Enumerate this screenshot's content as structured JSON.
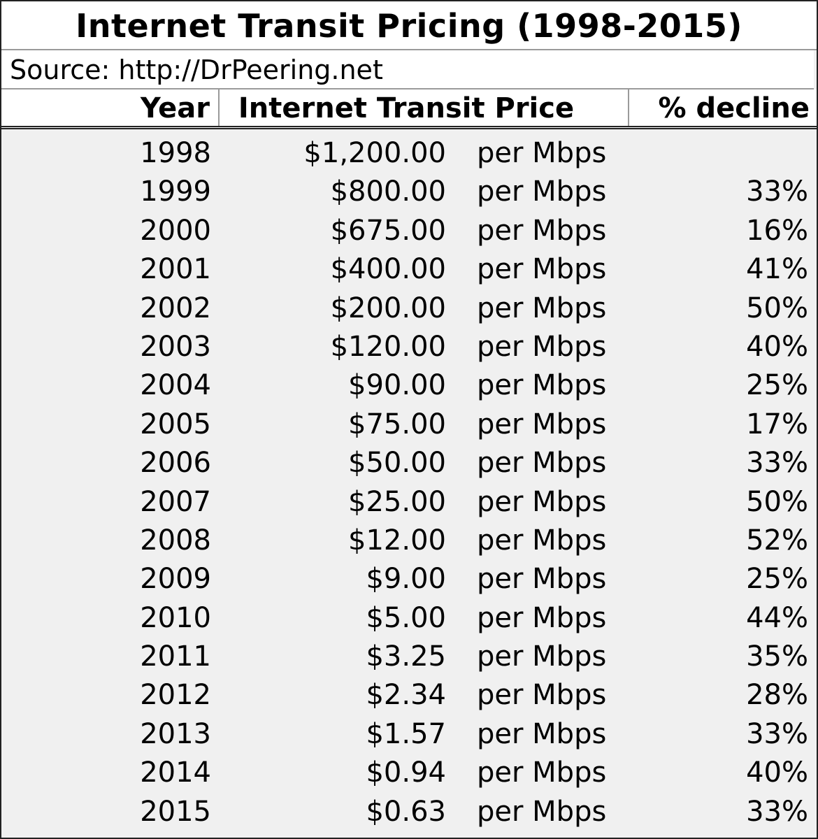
{
  "chart_data": {
    "type": "table",
    "title": "Internet Transit Pricing (1998-2015)",
    "source": "Source: http://DrPeering.net",
    "columns": [
      "Year",
      "Internet Transit Price",
      "% decline"
    ],
    "unit_label": "per Mbps",
    "x": [
      1998,
      1999,
      2000,
      2001,
      2002,
      2003,
      2004,
      2005,
      2006,
      2007,
      2008,
      2009,
      2010,
      2011,
      2012,
      2013,
      2014,
      2015
    ],
    "series": [
      {
        "name": "Internet Transit Price",
        "values": [
          1200.0,
          800.0,
          675.0,
          400.0,
          200.0,
          120.0,
          90.0,
          75.0,
          50.0,
          25.0,
          12.0,
          9.0,
          5.0,
          3.25,
          2.34,
          1.57,
          0.94,
          0.63
        ]
      },
      {
        "name": "% decline",
        "values": [
          null,
          33,
          16,
          41,
          50,
          40,
          25,
          17,
          33,
          50,
          52,
          25,
          44,
          35,
          28,
          33,
          40,
          33
        ]
      }
    ],
    "rows": [
      {
        "year": "1998",
        "price": "$1,200.00",
        "unit": "per Mbps",
        "decline": ""
      },
      {
        "year": "1999",
        "price": "$800.00",
        "unit": "per Mbps",
        "decline": "33%"
      },
      {
        "year": "2000",
        "price": "$675.00",
        "unit": "per Mbps",
        "decline": "16%"
      },
      {
        "year": "2001",
        "price": "$400.00",
        "unit": "per Mbps",
        "decline": "41%"
      },
      {
        "year": "2002",
        "price": "$200.00",
        "unit": "per Mbps",
        "decline": "50%"
      },
      {
        "year": "2003",
        "price": "$120.00",
        "unit": "per Mbps",
        "decline": "40%"
      },
      {
        "year": "2004",
        "price": "$90.00",
        "unit": "per Mbps",
        "decline": "25%"
      },
      {
        "year": "2005",
        "price": "$75.00",
        "unit": "per Mbps",
        "decline": "17%"
      },
      {
        "year": "2006",
        "price": "$50.00",
        "unit": "per Mbps",
        "decline": "33%"
      },
      {
        "year": "2007",
        "price": "$25.00",
        "unit": "per Mbps",
        "decline": "50%"
      },
      {
        "year": "2008",
        "price": "$12.00",
        "unit": "per Mbps",
        "decline": "52%"
      },
      {
        "year": "2009",
        "price": "$9.00",
        "unit": "per Mbps",
        "decline": "25%"
      },
      {
        "year": "2010",
        "price": "$5.00",
        "unit": "per Mbps",
        "decline": "44%"
      },
      {
        "year": "2011",
        "price": "$3.25",
        "unit": "per Mbps",
        "decline": "35%"
      },
      {
        "year": "2012",
        "price": "$2.34",
        "unit": "per Mbps",
        "decline": "28%"
      },
      {
        "year": "2013",
        "price": "$1.57",
        "unit": "per Mbps",
        "decline": "33%"
      },
      {
        "year": "2014",
        "price": "$0.94",
        "unit": "per Mbps",
        "decline": "40%"
      },
      {
        "year": "2015",
        "price": "$0.63",
        "unit": "per Mbps",
        "decline": "33%"
      }
    ]
  }
}
